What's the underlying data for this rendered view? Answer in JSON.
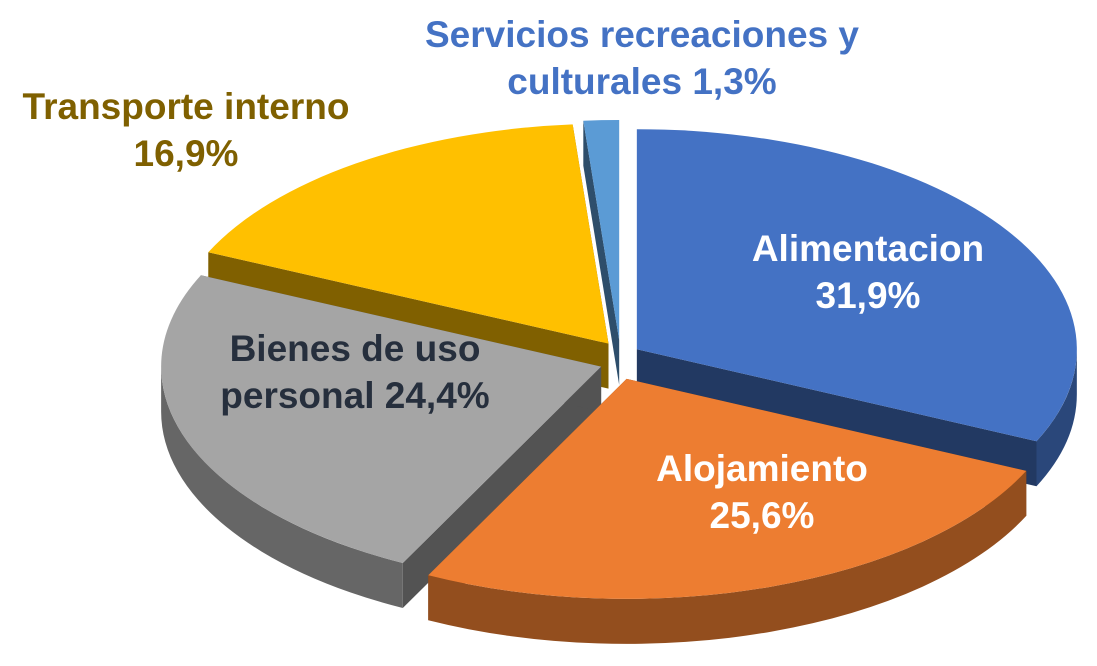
{
  "chart_data": {
    "type": "pie3d",
    "categories": [
      "Alimentacion",
      "Alojamiento",
      "Bienes de uso personal",
      "Transporte interno",
      "Servicios recreaciones y culturales"
    ],
    "values": [
      31.9,
      25.6,
      24.4,
      16.9,
      1.3
    ],
    "value_labels": [
      "31,9%",
      "25,6%",
      "24,4%",
      "16,9%",
      "1,3%"
    ],
    "colors": [
      "#4472c4",
      "#ed7d31",
      "#a5a5a5",
      "#ffc000",
      "#5b9bd5"
    ],
    "label_colors": [
      "#ffffff",
      "#ffffff",
      "#262f3d",
      "#7f6000",
      "#4472c4"
    ]
  }
}
